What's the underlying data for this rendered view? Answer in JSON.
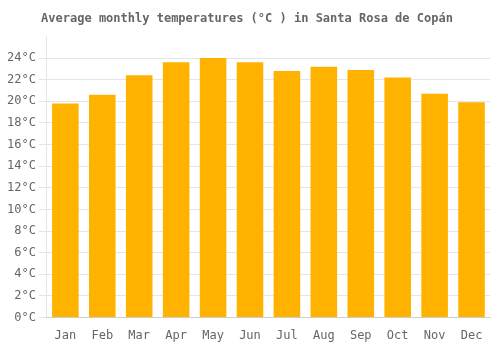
{
  "chart_data": {
    "type": "bar",
    "title": "Average monthly temperatures (°C ) in Santa Rosa de Copán",
    "categories": [
      "Jan",
      "Feb",
      "Mar",
      "Apr",
      "May",
      "Jun",
      "Jul",
      "Aug",
      "Sep",
      "Oct",
      "Nov",
      "Dec"
    ],
    "values": [
      19.8,
      20.6,
      22.4,
      23.6,
      24.0,
      23.6,
      22.8,
      23.2,
      22.9,
      22.2,
      20.7,
      19.9
    ],
    "color": "#FFB300",
    "ylim": [
      0,
      26
    ],
    "yticks": [
      {
        "value": 0,
        "label": "0°C"
      },
      {
        "value": 2,
        "label": "2°C"
      },
      {
        "value": 4,
        "label": "4°C"
      },
      {
        "value": 6,
        "label": "6°C"
      },
      {
        "value": 8,
        "label": "8°C"
      },
      {
        "value": 10,
        "label": "10°C"
      },
      {
        "value": 12,
        "label": "12°C"
      },
      {
        "value": 14,
        "label": "14°C"
      },
      {
        "value": 16,
        "label": "16°C"
      },
      {
        "value": 18,
        "label": "18°C"
      },
      {
        "value": 20,
        "label": "20°C"
      },
      {
        "value": 22,
        "label": "22°C"
      },
      {
        "value": 24,
        "label": "24°C"
      }
    ],
    "grid": true
  }
}
